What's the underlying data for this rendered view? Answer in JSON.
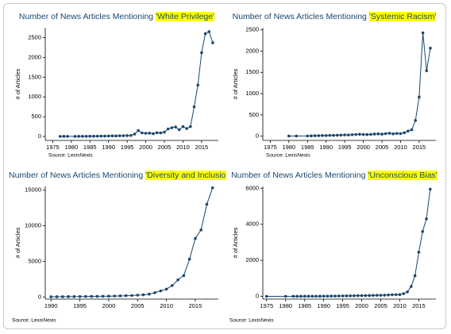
{
  "chart_data": [
    {
      "type": "line",
      "title": "Number of News Articles Mentioning",
      "title_highlight": "'White Privilege'",
      "y_label": "# of Articles",
      "source": "Source: LexisNexis",
      "color": "#1a476f",
      "x": [
        1977,
        1978,
        1979,
        1981,
        1982,
        1983,
        1984,
        1985,
        1986,
        1987,
        1988,
        1989,
        1990,
        1991,
        1992,
        1993,
        1994,
        1995,
        1996,
        1997,
        1998,
        1999,
        2000,
        2001,
        2002,
        2003,
        2004,
        2005,
        2006,
        2007,
        2008,
        2009,
        2010,
        2011,
        2012,
        2013,
        2014,
        2015,
        2016,
        2017,
        2018
      ],
      "values": [
        3,
        4,
        3,
        3,
        4,
        4,
        5,
        6,
        6,
        8,
        10,
        10,
        12,
        15,
        14,
        18,
        20,
        22,
        25,
        60,
        150,
        90,
        80,
        85,
        70,
        95,
        90,
        110,
        190,
        220,
        240,
        170,
        250,
        200,
        250,
        750,
        1300,
        2120,
        2600,
        2650,
        2370
      ],
      "xlim": [
        1973,
        2019.5
      ],
      "xticks": [
        1975,
        1980,
        1985,
        1990,
        1995,
        2000,
        2005,
        2010,
        2015
      ],
      "ylim": [
        -100,
        2750
      ],
      "yticks": [
        0,
        500,
        1000,
        1500,
        2000,
        2500
      ]
    },
    {
      "type": "line",
      "title": "Number of News Articles Mentioning",
      "title_highlight": "'Systemic Racism'",
      "y_label": "# of Articles",
      "source": "Source: LexisNexis",
      "color": "#1a476f",
      "x": [
        1980,
        1982,
        1985,
        1986,
        1987,
        1988,
        1989,
        1990,
        1991,
        1992,
        1993,
        1994,
        1995,
        1996,
        1997,
        1998,
        1999,
        2000,
        2001,
        2002,
        2003,
        2004,
        2005,
        2006,
        2007,
        2008,
        2009,
        2010,
        2011,
        2012,
        2013,
        2014,
        2015,
        2016,
        2017,
        2018
      ],
      "values": [
        3,
        4,
        5,
        8,
        10,
        12,
        15,
        14,
        18,
        20,
        22,
        25,
        30,
        28,
        35,
        40,
        45,
        40,
        38,
        42,
        50,
        55,
        48,
        60,
        70,
        55,
        65,
        60,
        80,
        120,
        150,
        370,
        920,
        2430,
        1540,
        2070
      ],
      "xlim": [
        1973,
        2019.5
      ],
      "xticks": [
        1975,
        1980,
        1985,
        1990,
        1995,
        2000,
        2005,
        2010,
        2015
      ],
      "ylim": [
        -100,
        2550
      ],
      "yticks": [
        0,
        500,
        1000,
        1500,
        2000,
        2500
      ]
    },
    {
      "type": "line",
      "title": "Number of News Articles Mentioning",
      "title_highlight": "'Diversity and Inclusion'",
      "y_label": "# of Articles",
      "source": "Source: LexisNexis",
      "color": "#1a476f",
      "x": [
        1990,
        1991,
        1992,
        1993,
        1994,
        1995,
        1996,
        1997,
        1998,
        1999,
        2000,
        2001,
        2002,
        2003,
        2004,
        2005,
        2006,
        2007,
        2008,
        2009,
        2010,
        2011,
        2012,
        2013,
        2014,
        2015,
        2016,
        2017,
        2018
      ],
      "values": [
        30,
        40,
        45,
        50,
        55,
        60,
        70,
        80,
        90,
        100,
        110,
        130,
        150,
        180,
        200,
        250,
        300,
        400,
        600,
        850,
        1100,
        1600,
        2400,
        3000,
        5300,
        8200,
        9400,
        13000,
        15300
      ],
      "xlim": [
        1989,
        2019
      ],
      "xticks": [
        1990,
        1995,
        2000,
        2005,
        2010,
        2015
      ],
      "ylim": [
        -300,
        15500
      ],
      "yticks": [
        0,
        5000,
        10000,
        15000
      ]
    },
    {
      "type": "line",
      "title": "Number of News Articles Mentioning",
      "title_highlight": "'Unconscious Bias'",
      "y_label": "# of Articles",
      "source": "Source: LexisNexis",
      "color": "#1a476f",
      "x": [
        1975,
        1980,
        1982,
        1983,
        1984,
        1985,
        1986,
        1987,
        1988,
        1989,
        1990,
        1991,
        1992,
        1993,
        1994,
        1995,
        1996,
        1997,
        1998,
        1999,
        2000,
        2001,
        2002,
        2003,
        2004,
        2005,
        2006,
        2007,
        2008,
        2009,
        2010,
        2011,
        2012,
        2013,
        2014,
        2015,
        2016,
        2017,
        2018
      ],
      "values": [
        3,
        4,
        5,
        5,
        6,
        8,
        8,
        10,
        10,
        12,
        14,
        15,
        18,
        20,
        22,
        25,
        28,
        30,
        35,
        40,
        42,
        45,
        50,
        55,
        60,
        65,
        70,
        80,
        90,
        95,
        100,
        150,
        250,
        550,
        1150,
        2450,
        3600,
        4300,
        5950
      ],
      "xlim": [
        1974,
        2019.5
      ],
      "xticks": [
        1975,
        1980,
        1985,
        1990,
        1995,
        2000,
        2005,
        2010,
        2015
      ],
      "ylim": [
        -150,
        6100
      ],
      "yticks": [
        0,
        2000,
        4000,
        6000
      ]
    }
  ]
}
